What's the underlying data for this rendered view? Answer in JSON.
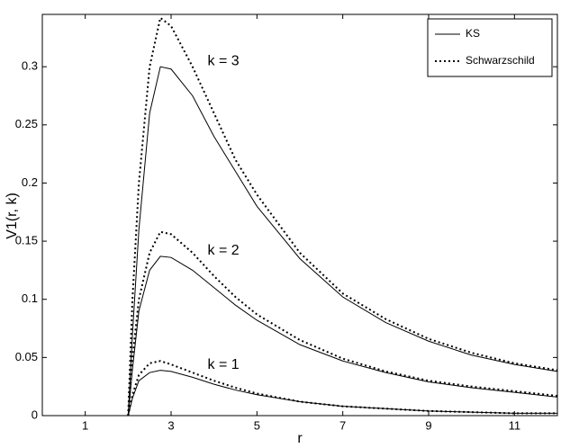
{
  "chart_data": {
    "type": "line",
    "xlabel": "r",
    "ylabel": "V1(r, k)",
    "xlim": [
      0,
      12
    ],
    "ylim": [
      0,
      0.345
    ],
    "xticks": [
      1,
      3,
      5,
      7,
      9,
      11
    ],
    "yticks": [
      0,
      0.05,
      0.1,
      0.15,
      0.2,
      0.25,
      0.3
    ],
    "legend": "upper right",
    "x": [
      2,
      2.1,
      2.25,
      2.5,
      2.75,
      3,
      3.5,
      4,
      4.5,
      5,
      6,
      7,
      8,
      9,
      10,
      11,
      12
    ],
    "series": [
      {
        "name": "KS",
        "color": "#000000",
        "dash": "solid",
        "curves": [
          [
            0,
            0.015,
            0.03,
            0.037,
            0.039,
            0.038,
            0.033,
            0.027,
            0.022,
            0.018,
            0.012,
            0.008,
            0.006,
            0.004,
            0.003,
            0.002,
            0.002
          ],
          [
            0,
            0.04,
            0.09,
            0.125,
            0.137,
            0.136,
            0.125,
            0.11,
            0.095,
            0.082,
            0.061,
            0.047,
            0.037,
            0.029,
            0.024,
            0.02,
            0.016
          ],
          [
            0,
            0.07,
            0.16,
            0.26,
            0.3,
            0.298,
            0.275,
            0.24,
            0.21,
            0.18,
            0.135,
            0.102,
            0.08,
            0.064,
            0.052,
            0.044,
            0.038
          ]
        ]
      },
      {
        "name": "Schwarzschild",
        "color": "#000000",
        "dash": "dotted",
        "curves": [
          [
            0,
            0.018,
            0.035,
            0.045,
            0.047,
            0.044,
            0.037,
            0.03,
            0.024,
            0.019,
            0.012,
            0.008,
            0.006,
            0.004,
            0.003,
            0.002,
            0.002
          ],
          [
            0,
            0.05,
            0.1,
            0.14,
            0.158,
            0.156,
            0.14,
            0.12,
            0.102,
            0.087,
            0.065,
            0.049,
            0.038,
            0.03,
            0.025,
            0.021,
            0.017
          ],
          [
            0,
            0.1,
            0.2,
            0.3,
            0.342,
            0.335,
            0.3,
            0.26,
            0.22,
            0.19,
            0.14,
            0.105,
            0.083,
            0.066,
            0.054,
            0.045,
            0.039
          ]
        ]
      }
    ],
    "annotations": [
      "k = 1",
      "k = 2",
      "k = 3"
    ]
  }
}
